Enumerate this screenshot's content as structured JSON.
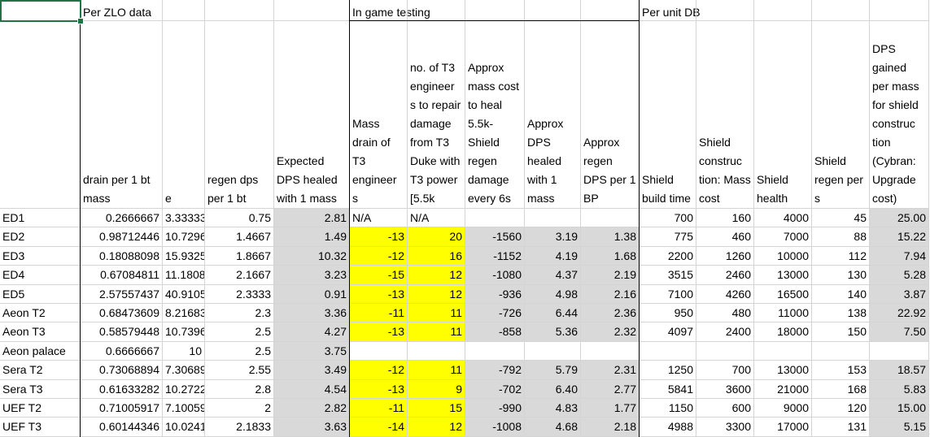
{
  "groups": {
    "zlo": "Per ZLO data",
    "ingame": "In game testing",
    "unitdb": "Per unit DB"
  },
  "headers": [
    "drain per 1 bt mass",
    "e",
    "regen dps per 1 bt",
    "Expected DPS healed with 1 mass",
    "Mass drain of T3 engineer s",
    "no. of T3 engineer s to repair damage from T3 Duke with T3 power [5.5k",
    "Approx mass cost to heal 5.5k-Shield regen damage every 6s",
    "Approx DPS healed with 1 mass",
    "Approx regen DPS per 1 BP",
    "Shield build time",
    "Shield construc tion: Mass cost",
    "Shield health",
    "Shield regen per s",
    "DPS gained per mass for shield construc tion (Cybran: Upgrade cost)"
  ],
  "rows": [
    {
      "name": "ED1",
      "c": [
        "0.2666667",
        "3.33333",
        "0.75",
        "2.81",
        "N/A",
        "N/A",
        "",
        "",
        "",
        "700",
        "160",
        "4000",
        "45",
        "25.00"
      ]
    },
    {
      "name": "ED2",
      "c": [
        "0.98712446",
        "10.7296",
        "1.4667",
        "1.49",
        "-13",
        "20",
        "-1560",
        "3.19",
        "1.38",
        "775",
        "460",
        "7000",
        "88",
        "15.22"
      ]
    },
    {
      "name": "ED3",
      "c": [
        "0.18088098",
        "15.9325",
        "1.8667",
        "10.32",
        "-12",
        "16",
        "-1152",
        "4.19",
        "1.68",
        "2200",
        "1260",
        "10000",
        "112",
        "7.94"
      ]
    },
    {
      "name": "ED4",
      "c": [
        "0.67084811",
        "11.1808",
        "2.1667",
        "3.23",
        "-15",
        "12",
        "-1080",
        "4.37",
        "2.19",
        "3515",
        "2460",
        "13000",
        "130",
        "5.28"
      ]
    },
    {
      "name": "ED5",
      "c": [
        "2.57557437",
        "40.9105",
        "2.3333",
        "0.91",
        "-13",
        "12",
        "-936",
        "4.98",
        "2.16",
        "7100",
        "4260",
        "16500",
        "140",
        "3.87"
      ]
    },
    {
      "name": "Aeon T2",
      "c": [
        "0.68473609",
        "8.21683",
        "2.3",
        "3.36",
        "-11",
        "11",
        "-726",
        "6.44",
        "2.36",
        "950",
        "480",
        "11000",
        "138",
        "22.92"
      ]
    },
    {
      "name": "Aeon T3",
      "c": [
        "0.58579448",
        "10.7396",
        "2.5",
        "4.27",
        "-13",
        "11",
        "-858",
        "5.36",
        "2.32",
        "4097",
        "2400",
        "18000",
        "150",
        "7.50"
      ]
    },
    {
      "name": "Aeon palace",
      "c": [
        "0.6666667",
        "10",
        "2.5",
        "3.75",
        "",
        "",
        "",
        "",
        "",
        "",
        "",
        "",
        "",
        ""
      ]
    },
    {
      "name": "Sera T2",
      "c": [
        "0.73068894",
        "7.30689",
        "2.55",
        "3.49",
        "-12",
        "11",
        "-792",
        "5.79",
        "2.31",
        "1250",
        "700",
        "13000",
        "153",
        "18.57"
      ]
    },
    {
      "name": "Sera T3",
      "c": [
        "0.61633282",
        "10.2722",
        "2.8",
        "4.54",
        "-13",
        "9",
        "-702",
        "6.40",
        "2.77",
        "5841",
        "3600",
        "21000",
        "168",
        "5.83"
      ]
    },
    {
      "name": "UEF T2",
      "c": [
        "0.71005917",
        "7.10059",
        "2",
        "2.82",
        "-11",
        "15",
        "-990",
        "4.83",
        "1.77",
        "1150",
        "600",
        "9000",
        "120",
        "15.00"
      ]
    },
    {
      "name": "UEF T3",
      "c": [
        "0.60144346",
        "10.0241",
        "2.1833",
        "3.63",
        "-14",
        "12",
        "-1008",
        "4.68",
        "2.18",
        "4988",
        "3300",
        "17000",
        "131",
        "5.15"
      ]
    }
  ],
  "colors": {
    "highlight": "#ffff00",
    "calc": "#d9d9d9",
    "selection": "#217346"
  }
}
